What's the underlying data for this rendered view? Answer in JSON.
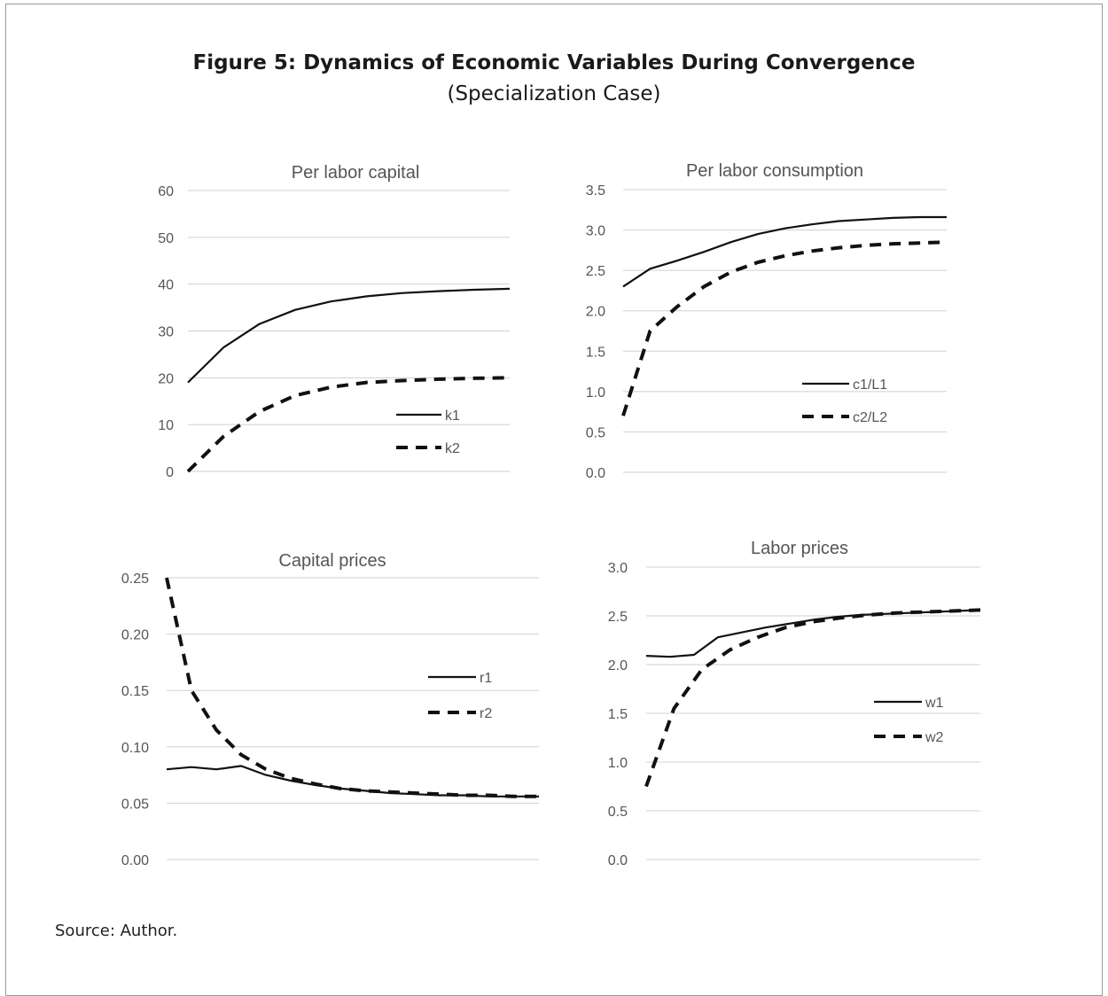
{
  "figure": {
    "title": "Figure 5: Dynamics of Economic Variables During Convergence",
    "subtitle": "(Specialization Case)",
    "source": "Source: Author."
  },
  "chart_data": [
    {
      "type": "line",
      "title": "Per labor capital",
      "ylim": [
        0,
        60
      ],
      "yticks": [
        "0",
        "10",
        "20",
        "30",
        "40",
        "50",
        "60"
      ],
      "grid": true,
      "legend_position": "right-lower",
      "series": [
        {
          "name": "k1",
          "style": "solid",
          "values": [
            19,
            26.5,
            31.5,
            34.5,
            36.3,
            37.4,
            38.1,
            38.5,
            38.8,
            39.0
          ]
        },
        {
          "name": "k2",
          "style": "dashed",
          "values": [
            0,
            7.5,
            12.8,
            16.2,
            18.0,
            19.0,
            19.4,
            19.7,
            19.9,
            20.0
          ]
        }
      ]
    },
    {
      "type": "line",
      "title": "Per labor consumption",
      "ylim": [
        0,
        3.5
      ],
      "yticks": [
        "0.0",
        "0.5",
        "1.0",
        "1.5",
        "2.0",
        "2.5",
        "3.0",
        "3.5"
      ],
      "grid": true,
      "legend_position": "right-middle",
      "series": [
        {
          "name": "c1/L1",
          "style": "solid",
          "values": [
            2.3,
            2.52,
            2.62,
            2.73,
            2.85,
            2.95,
            3.02,
            3.07,
            3.11,
            3.13,
            3.15,
            3.16,
            3.16
          ]
        },
        {
          "name": "c2/L2",
          "style": "dashed",
          "values": [
            0.7,
            1.75,
            2.05,
            2.3,
            2.48,
            2.6,
            2.68,
            2.74,
            2.78,
            2.81,
            2.83,
            2.84,
            2.85
          ]
        }
      ]
    },
    {
      "type": "line",
      "title": "Capital prices",
      "ylim": [
        0,
        0.25
      ],
      "yticks": [
        "0.00",
        "0.05",
        "0.10",
        "0.15",
        "0.20",
        "0.25"
      ],
      "grid": true,
      "legend_position": "right-upper",
      "series": [
        {
          "name": "r1",
          "style": "solid",
          "values": [
            0.08,
            0.082,
            0.08,
            0.083,
            0.075,
            0.07,
            0.066,
            0.063,
            0.061,
            0.059,
            0.058,
            0.057,
            0.057,
            0.056,
            0.056,
            0.056
          ]
        },
        {
          "name": "r2",
          "style": "dashed",
          "values": [
            0.25,
            0.15,
            0.115,
            0.093,
            0.08,
            0.072,
            0.067,
            0.063,
            0.061,
            0.06,
            0.059,
            0.058,
            0.057,
            0.057,
            0.056,
            0.056
          ]
        }
      ]
    },
    {
      "type": "line",
      "title": "Labor prices",
      "ylim": [
        0,
        3.0
      ],
      "yticks": [
        "0.0",
        "0.5",
        "1.0",
        "1.5",
        "2.0",
        "2.5",
        "3.0"
      ],
      "grid": true,
      "legend_position": "right-middle",
      "series": [
        {
          "name": "w1",
          "style": "solid",
          "values": [
            2.09,
            2.08,
            2.1,
            2.28,
            2.33,
            2.38,
            2.42,
            2.46,
            2.49,
            2.51,
            2.52,
            2.53,
            2.54,
            2.55,
            2.56
          ]
        },
        {
          "name": "w2",
          "style": "dashed",
          "values": [
            0.75,
            1.55,
            1.95,
            2.15,
            2.28,
            2.38,
            2.44,
            2.48,
            2.51,
            2.53,
            2.54,
            2.55,
            2.56
          ]
        }
      ]
    }
  ]
}
